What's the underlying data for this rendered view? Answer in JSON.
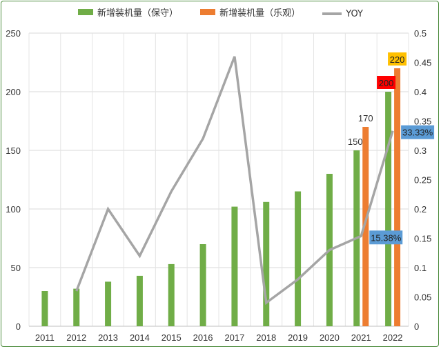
{
  "chart_data": {
    "type": "bar",
    "categories": [
      "2011",
      "2012",
      "2013",
      "2014",
      "2015",
      "2016",
      "2017",
      "2018",
      "2019",
      "2020",
      "2021",
      "2022"
    ],
    "series": [
      {
        "name": "新增装机量（保守）",
        "type": "bar",
        "axis": "left",
        "values": [
          30,
          32,
          38,
          43,
          53,
          70,
          102,
          106,
          115,
          130,
          150,
          200
        ],
        "color": "#70ad47"
      },
      {
        "name": "新增装机量（乐观）",
        "type": "bar",
        "axis": "left",
        "values": [
          null,
          null,
          null,
          null,
          null,
          null,
          null,
          null,
          null,
          null,
          170,
          220
        ],
        "color": "#ed7d31"
      },
      {
        "name": "YOY",
        "type": "line",
        "axis": "right",
        "values": [
          null,
          0.06,
          0.2,
          0.12,
          0.23,
          0.32,
          0.46,
          0.04,
          0.08,
          0.13,
          0.1538,
          0.3333
        ],
        "color": "#a5a5a5"
      }
    ],
    "data_labels": [
      {
        "series": 0,
        "index": 10,
        "text": "150"
      },
      {
        "series": 1,
        "index": 10,
        "text": "170"
      },
      {
        "series": 0,
        "index": 11,
        "text": "200",
        "bg": "#ff0000"
      },
      {
        "series": 1,
        "index": 11,
        "text": "220",
        "bg": "#ffc000"
      },
      {
        "series": 2,
        "index": 10,
        "text": "15.38%",
        "bg": "#5b9bd5"
      },
      {
        "series": 2,
        "index": 11,
        "text": "33.33%",
        "bg": "#5b9bd5"
      }
    ],
    "left_axis": {
      "min": 0,
      "max": 250,
      "ticks": [
        "0",
        "50",
        "100",
        "150",
        "200",
        "250"
      ]
    },
    "right_axis": {
      "min": 0,
      "max": 0.5,
      "ticks": [
        "0",
        "0.05",
        "0.1",
        "0.15",
        "0.2",
        "0.25",
        "0.3",
        "0.35",
        "0.4",
        "0.45",
        "0.5"
      ]
    },
    "grid": true,
    "legend_position": "top"
  }
}
